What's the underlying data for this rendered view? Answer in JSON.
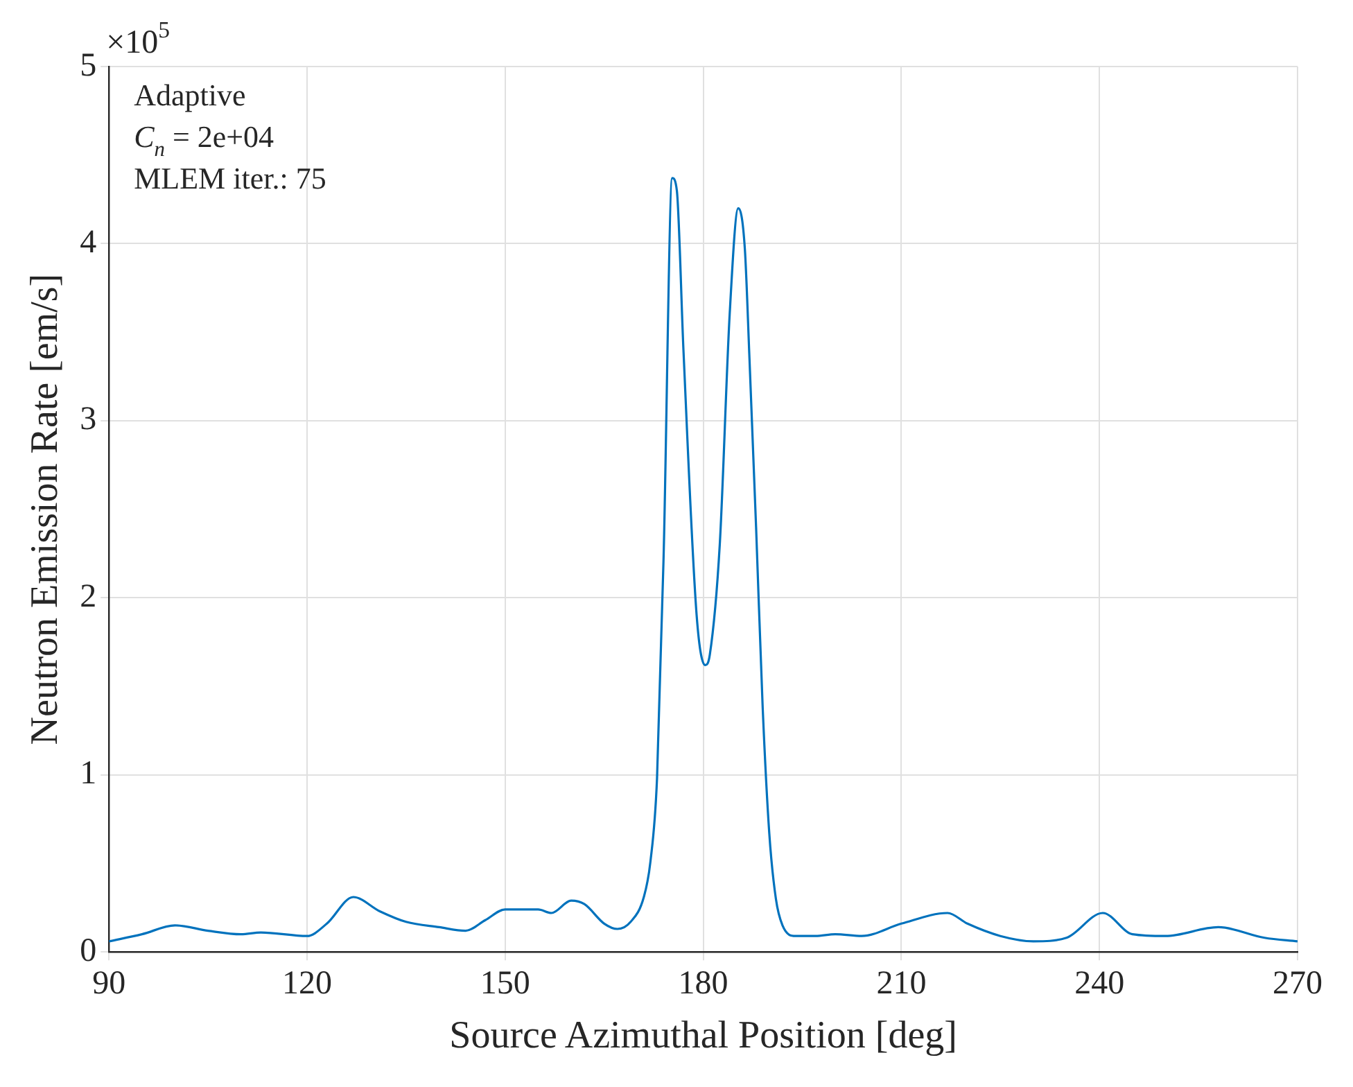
{
  "chart_data": {
    "type": "line",
    "xlabel": "Source Azimuthal Position [deg]",
    "ylabel": "Neutron Emission Rate [em/s]",
    "annotations": [
      "×10$^{5}$",
      "Adaptive",
      "C$_{n}$ = 2e+04",
      "MLEM iter.: 75"
    ],
    "xlim": [
      90,
      270
    ],
    "xticks": [
      90,
      120,
      150,
      180,
      210,
      240,
      270
    ],
    "ylim": [
      0,
      5
    ],
    "yticks": [
      0,
      1,
      2,
      3,
      4,
      5
    ],
    "grid": true,
    "marker": "none",
    "line_style": "solid",
    "series": [
      {
        "color": "#0072bd",
        "x": [
          90,
          95,
          100,
          105,
          110,
          113,
          120,
          123,
          127,
          131,
          135,
          140,
          144,
          147,
          150,
          155,
          157,
          160,
          162,
          165,
          167,
          169,
          171,
          172,
          173,
          174,
          175.3,
          176,
          177,
          179,
          180.3,
          181,
          182.5,
          184,
          185.3,
          186.3,
          187,
          188,
          189,
          190,
          191,
          192,
          194,
          197,
          200,
          204,
          210,
          217,
          220,
          225,
          230,
          235,
          240.5,
          245,
          250,
          258,
          265,
          270
        ],
        "values": [
          0.06,
          0.1,
          0.15,
          0.12,
          0.1,
          0.11,
          0.09,
          0.16,
          0.31,
          0.23,
          0.17,
          0.14,
          0.12,
          0.18,
          0.24,
          0.24,
          0.22,
          0.29,
          0.27,
          0.16,
          0.13,
          0.17,
          0.31,
          0.51,
          0.98,
          2.24,
          4.37,
          4.3,
          3.4,
          1.9,
          1.62,
          1.68,
          2.3,
          3.6,
          4.2,
          3.97,
          3.35,
          2.4,
          1.38,
          0.67,
          0.3,
          0.15,
          0.09,
          0.09,
          0.1,
          0.09,
          0.16,
          0.22,
          0.16,
          0.09,
          0.06,
          0.08,
          0.22,
          0.1,
          0.09,
          0.14,
          0.08,
          0.06
        ]
      }
    ]
  }
}
